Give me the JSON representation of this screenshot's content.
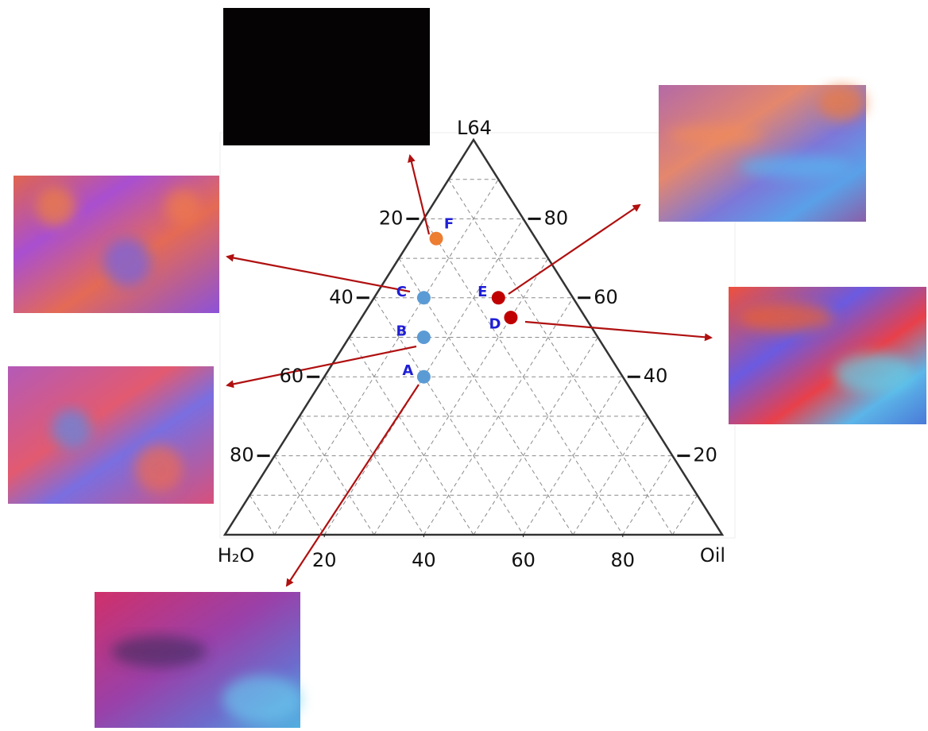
{
  "chart_data": {
    "type": "ternary",
    "vertex_labels": {
      "top": "L64",
      "left": "H₂O",
      "right": "Oil"
    },
    "ticks": [
      20,
      40,
      60,
      80
    ],
    "gridlines": [
      10,
      20,
      30,
      40,
      50,
      60,
      70,
      80,
      90
    ],
    "grid": true,
    "points": [
      {
        "label": "A",
        "color": "#5b9bd5",
        "h2o": 40,
        "l64": 40,
        "oil": 20
      },
      {
        "label": "B",
        "color": "#5b9bd5",
        "h2o": 35,
        "l64": 50,
        "oil": 15
      },
      {
        "label": "C",
        "color": "#5b9bd5",
        "h2o": 30,
        "l64": 60,
        "oil": 10
      },
      {
        "label": "D",
        "color": "#c00000",
        "h2o": 15,
        "l64": 55,
        "oil": 30
      },
      {
        "label": "E",
        "color": "#c00000",
        "h2o": 15,
        "l64": 60,
        "oil": 25
      },
      {
        "label": "F",
        "color": "#ed7d31",
        "h2o": 20,
        "l64": 75,
        "oil": 5
      }
    ]
  }
}
